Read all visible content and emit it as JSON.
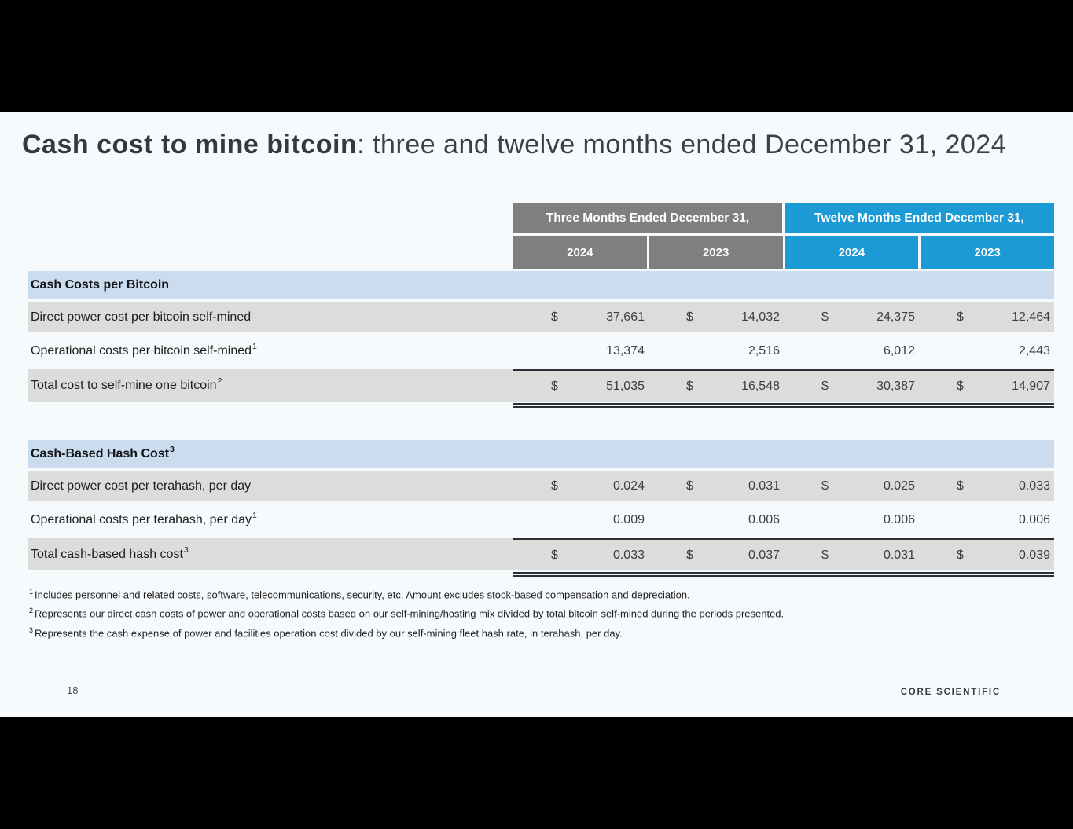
{
  "slide": {
    "title_bold": "Cash cost to mine bitcoin",
    "title_rest": ": three and twelve months ended December 31, 2024",
    "page_number": "18",
    "logo": "CORE SCIENTIFIC"
  },
  "colors": {
    "slide_background": "#f7fafd",
    "header_gray": "#7f7f7f",
    "header_blue": "#1b9ad5",
    "section_row_blue": "#cbdcef",
    "data_row_gray": "#dcdcda",
    "rule_line": "#2b2f33"
  },
  "table": {
    "currency": "$",
    "col_groups": [
      {
        "label": "Three Months Ended December 31,",
        "color": "#7f7f7f",
        "years": [
          "2024",
          "2023"
        ]
      },
      {
        "label": "Twelve Months Ended December 31,",
        "color": "#1b9ad5",
        "years": [
          "2024",
          "2023"
        ]
      }
    ],
    "sections": [
      {
        "header": "Cash Costs per Bitcoin",
        "header_sup": "",
        "rows": [
          {
            "label": "Direct power cost per bitcoin self-mined",
            "sup": "",
            "values": [
              "37,661",
              "14,032",
              "24,375",
              "12,464"
            ]
          },
          {
            "label": "Operational costs per bitcoin self-mined",
            "sup": "1",
            "values": [
              "13,374",
              "2,516",
              "6,012",
              "2,443"
            ]
          },
          {
            "label": "Total cost to self-mine one bitcoin",
            "sup": "2",
            "values": [
              "51,035",
              "16,548",
              "30,387",
              "14,907"
            ]
          }
        ]
      },
      {
        "header": "Cash-Based Hash Cost",
        "header_sup": "3",
        "rows": [
          {
            "label": "Direct power cost per terahash, per day",
            "sup": "",
            "values": [
              "0.024",
              "0.031",
              "0.025",
              "0.033"
            ]
          },
          {
            "label": "Operational costs per terahash, per day",
            "sup": "1",
            "values": [
              "0.009",
              "0.006",
              "0.006",
              "0.006"
            ]
          },
          {
            "label": "Total cash-based hash cost",
            "sup": "3",
            "values": [
              "0.033",
              "0.037",
              "0.031",
              "0.039"
            ]
          }
        ]
      }
    ]
  },
  "footnotes": [
    {
      "sup": "1",
      "text": "Includes personnel and related costs, software, telecommunications, security, etc. Amount excludes stock-based compensation and depreciation."
    },
    {
      "sup": "2",
      "text": "Represents our direct cash costs of power and operational costs based on our self-mining/hosting mix divided by total bitcoin self-mined during the periods presented."
    },
    {
      "sup": "3",
      "text": "Represents the cash expense of power and facilities operation cost divided by our self-mining fleet hash rate, in terahash, per day."
    }
  ]
}
